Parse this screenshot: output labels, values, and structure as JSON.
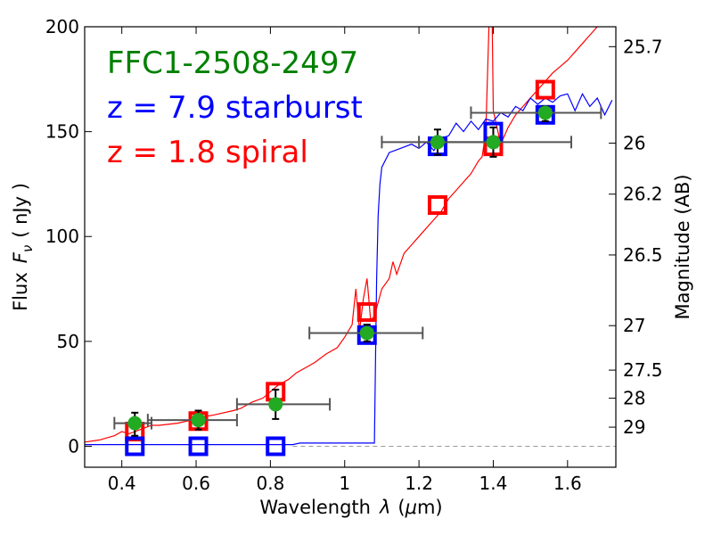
{
  "chart_data": {
    "type": "scatter",
    "title": "",
    "legend": [
      {
        "label": "FFC1-2508-2497",
        "color": "#008000"
      },
      {
        "label": "z = 7.9 starburst",
        "color": "#0000ff"
      },
      {
        "label": "z = 1.8 spiral",
        "color": "#ff0000"
      }
    ],
    "xlabel_parts": {
      "pre": "Wavelength",
      "sym": "λ",
      "unit_open": "(",
      "mu": "μ",
      "unit_rest": "m)"
    },
    "ylabel_parts": {
      "pre": "Flux",
      "sym": "F",
      "sub": "ν",
      "unit": "( nJy )"
    },
    "y2label": "Magnitude (AB)",
    "xlim": [
      0.3,
      1.73
    ],
    "ylim": [
      -10,
      200
    ],
    "xticks": [
      0.4,
      0.6,
      0.8,
      1.0,
      1.2,
      1.4,
      1.6
    ],
    "xtick_labels": [
      "0.4",
      "0.6",
      "0.8",
      "1",
      "1.2",
      "1.4",
      "1.6"
    ],
    "yticks": [
      0,
      50,
      100,
      150,
      200
    ],
    "ytick_labels": [
      "0",
      "50",
      "100",
      "150",
      "200"
    ],
    "mag_ticks": [
      {
        "label": "25.7",
        "flux": 190.5
      },
      {
        "label": "26",
        "flux": 144.5
      },
      {
        "label": "26.2",
        "flux": 120.2
      },
      {
        "label": "26.5",
        "flux": 91.2
      },
      {
        "label": "27",
        "flux": 57.5
      },
      {
        "label": "27.5",
        "flux": 36.3
      },
      {
        "label": "28",
        "flux": 22.9
      },
      {
        "label": "29",
        "flux": 9.1
      }
    ],
    "zero_line_color": "#999999",
    "observed": {
      "name": "FFC1-2508-2497",
      "color": "#22aa22",
      "points": [
        {
          "x": 0.435,
          "y": 11,
          "xerr": [
            0.38,
            0.48
          ],
          "yerr": [
            5,
            16
          ]
        },
        {
          "x": 0.606,
          "y": 12.5,
          "xerr": [
            0.47,
            0.71
          ],
          "yerr": [
            8,
            17
          ]
        },
        {
          "x": 0.814,
          "y": 20,
          "xerr": [
            0.71,
            0.96
          ],
          "yerr": [
            13,
            27
          ]
        },
        {
          "x": 1.06,
          "y": 54,
          "xerr": [
            0.905,
            1.21
          ],
          "yerr": [
            50,
            58
          ]
        },
        {
          "x": 1.25,
          "y": 145,
          "xerr": [
            1.1,
            1.41
          ],
          "yerr": [
            139,
            151
          ]
        },
        {
          "x": 1.4,
          "y": 145,
          "xerr": [
            1.2,
            1.61
          ],
          "yerr": [
            138,
            152
          ]
        },
        {
          "x": 1.54,
          "y": 159,
          "xerr": [
            1.34,
            1.69
          ],
          "yerr": [
            155,
            162
          ]
        }
      ]
    },
    "model_starburst": {
      "name": "z = 7.9 starburst",
      "color": "#0000ff",
      "band_fluxes": [
        {
          "x": 0.435,
          "y": 0
        },
        {
          "x": 0.606,
          "y": 0
        },
        {
          "x": 0.814,
          "y": 0
        },
        {
          "x": 1.06,
          "y": 53
        },
        {
          "x": 1.25,
          "y": 143
        },
        {
          "x": 1.4,
          "y": 150
        },
        {
          "x": 1.54,
          "y": 158
        }
      ],
      "spectrum": [
        [
          0.3,
          0.8
        ],
        [
          0.86,
          0.8
        ],
        [
          0.88,
          1.5
        ],
        [
          1.0,
          1.5
        ],
        [
          1.08,
          1.5
        ],
        [
          1.083,
          40
        ],
        [
          1.086,
          80
        ],
        [
          1.09,
          110
        ],
        [
          1.095,
          125
        ],
        [
          1.1,
          133
        ],
        [
          1.12,
          140
        ],
        [
          1.15,
          142
        ],
        [
          1.18,
          144
        ],
        [
          1.2,
          142
        ],
        [
          1.22,
          145
        ],
        [
          1.24,
          141
        ],
        [
          1.26,
          147
        ],
        [
          1.28,
          148
        ],
        [
          1.3,
          154
        ],
        [
          1.32,
          150
        ],
        [
          1.34,
          155
        ],
        [
          1.36,
          151
        ],
        [
          1.38,
          156
        ],
        [
          1.4,
          155
        ],
        [
          1.42,
          159
        ],
        [
          1.44,
          157
        ],
        [
          1.46,
          162
        ],
        [
          1.48,
          160
        ],
        [
          1.5,
          166
        ],
        [
          1.52,
          163
        ],
        [
          1.54,
          166
        ],
        [
          1.56,
          164
        ],
        [
          1.58,
          167
        ],
        [
          1.6,
          168
        ],
        [
          1.62,
          160
        ],
        [
          1.64,
          168
        ],
        [
          1.66,
          162
        ],
        [
          1.68,
          166
        ],
        [
          1.7,
          158
        ],
        [
          1.72,
          165
        ]
      ]
    },
    "model_spiral": {
      "name": "z = 1.8 spiral",
      "color": "#ff0000",
      "band_fluxes": [
        {
          "x": 0.435,
          "y": 7
        },
        {
          "x": 0.606,
          "y": 12
        },
        {
          "x": 0.814,
          "y": 26
        },
        {
          "x": 1.06,
          "y": 64
        },
        {
          "x": 1.25,
          "y": 115
        },
        {
          "x": 1.4,
          "y": 143
        },
        {
          "x": 1.54,
          "y": 170
        }
      ],
      "spectrum": [
        [
          0.3,
          2
        ],
        [
          0.34,
          3
        ],
        [
          0.38,
          5
        ],
        [
          0.4,
          7
        ],
        [
          0.42,
          6
        ],
        [
          0.45,
          8
        ],
        [
          0.48,
          10
        ],
        [
          0.5,
          10
        ],
        [
          0.55,
          11
        ],
        [
          0.6,
          13
        ],
        [
          0.62,
          14
        ],
        [
          0.65,
          15
        ],
        [
          0.7,
          17
        ],
        [
          0.72,
          18
        ],
        [
          0.75,
          21
        ],
        [
          0.78,
          23
        ],
        [
          0.8,
          26
        ],
        [
          0.82,
          29
        ],
        [
          0.85,
          32
        ],
        [
          0.87,
          35
        ],
        [
          0.9,
          38
        ],
        [
          0.92,
          40
        ],
        [
          0.95,
          44
        ],
        [
          0.98,
          47
        ],
        [
          1.0,
          52
        ],
        [
          1.02,
          58
        ],
        [
          1.03,
          75
        ],
        [
          1.04,
          55
        ],
        [
          1.05,
          70
        ],
        [
          1.06,
          80
        ],
        [
          1.07,
          60
        ],
        [
          1.08,
          62
        ],
        [
          1.1,
          75
        ],
        [
          1.12,
          80
        ],
        [
          1.13,
          88
        ],
        [
          1.14,
          82
        ],
        [
          1.16,
          92
        ],
        [
          1.18,
          96
        ],
        [
          1.2,
          100
        ],
        [
          1.22,
          104
        ],
        [
          1.24,
          108
        ],
        [
          1.26,
          112
        ],
        [
          1.28,
          118
        ],
        [
          1.3,
          122
        ],
        [
          1.32,
          126
        ],
        [
          1.34,
          130
        ],
        [
          1.36,
          136
        ],
        [
          1.37,
          138
        ],
        [
          1.38,
          150
        ],
        [
          1.39,
          210
        ],
        [
          1.395,
          230
        ],
        [
          1.4,
          160
        ],
        [
          1.42,
          144
        ],
        [
          1.44,
          152
        ],
        [
          1.46,
          158
        ],
        [
          1.48,
          162
        ],
        [
          1.5,
          166
        ],
        [
          1.52,
          170
        ],
        [
          1.54,
          174
        ],
        [
          1.56,
          178
        ],
        [
          1.58,
          181
        ],
        [
          1.6,
          184
        ],
        [
          1.62,
          188
        ],
        [
          1.64,
          192
        ],
        [
          1.66,
          196
        ],
        [
          1.68,
          200
        ],
        [
          1.72,
          205
        ]
      ]
    }
  }
}
